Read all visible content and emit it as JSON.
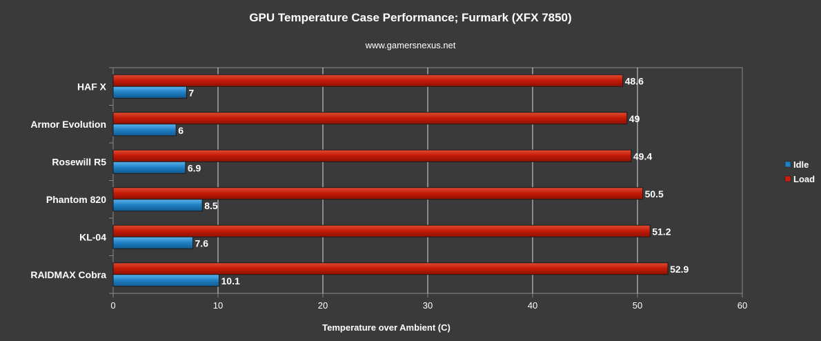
{
  "chart_data": {
    "type": "bar",
    "orientation": "horizontal",
    "title": "GPU Temperature Case Performance; Furmark (XFX 7850)",
    "subtitle": "www.gamersnexus.net",
    "xlabel": "Temperature over Ambient (C)",
    "ylabel": "",
    "categories": [
      "HAF X",
      "Armor Evolution",
      "Rosewill R5",
      "Phantom 820",
      "KL-04",
      "RAIDMAX Cobra"
    ],
    "series": [
      {
        "name": "Idle",
        "values": [
          7,
          6,
          6.9,
          8.5,
          7.6,
          10.1
        ],
        "color": "#1f7fc4"
      },
      {
        "name": "Load",
        "values": [
          48.6,
          49,
          49.4,
          50.5,
          51.2,
          52.9
        ],
        "color": "#cc1f0c"
      }
    ],
    "xlim": [
      0,
      60
    ],
    "xticks": [
      0,
      10,
      20,
      30,
      40,
      50,
      60
    ],
    "grid": true,
    "legend_position": "right"
  }
}
